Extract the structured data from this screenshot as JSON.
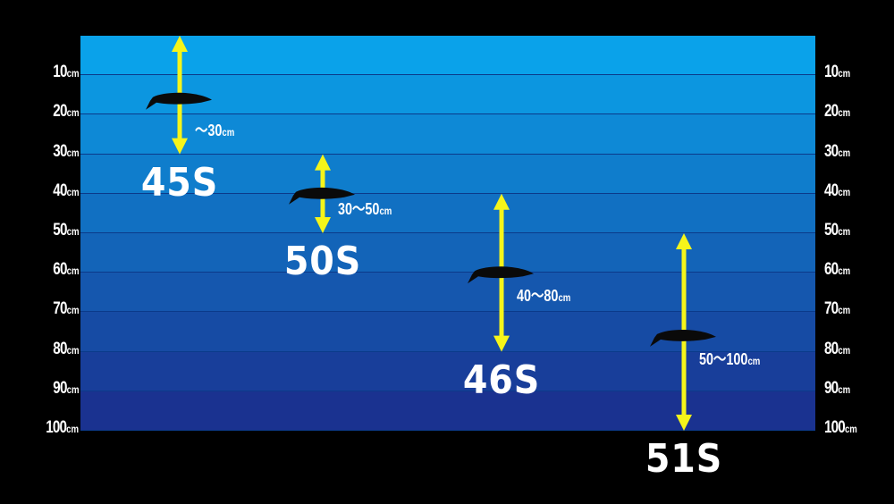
{
  "depth_unit": "cm",
  "depth_ticks": [
    "10",
    "20",
    "30",
    "40",
    "50",
    "60",
    "70",
    "80",
    "90",
    "100"
  ],
  "colors": {
    "background": "#000000",
    "water_top": "#0aa2ea",
    "water_bottom": "#1a3290",
    "arrow": "#f5f51a",
    "lure": "#0a0a0a",
    "text": "#ffffff"
  },
  "lures": [
    {
      "model": "45S",
      "range_text": "～30",
      "range_unit": "cm",
      "min_depth": 0,
      "max_depth": 30,
      "lure_depth": 16
    },
    {
      "model": "50S",
      "range_text": "30～50",
      "range_unit": "cm",
      "min_depth": 30,
      "max_depth": 50,
      "lure_depth": 40
    },
    {
      "model": "46S",
      "range_text": "40～80",
      "range_unit": "cm",
      "min_depth": 40,
      "max_depth": 80,
      "lure_depth": 60
    },
    {
      "model": "51S",
      "range_text": "50～100",
      "range_unit": "cm",
      "min_depth": 50,
      "max_depth": 100,
      "lure_depth": 76
    }
  ]
}
